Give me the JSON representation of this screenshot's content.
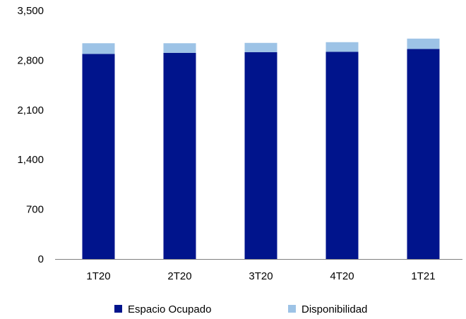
{
  "chart_data": {
    "type": "bar",
    "stacked": true,
    "categories": [
      "1T20",
      "2T20",
      "3T20",
      "4T20",
      "1T21"
    ],
    "series": [
      {
        "name": "Espacio Ocupado",
        "color": "#00148C",
        "values": [
          2890,
          2905,
          2915,
          2920,
          2960
        ]
      },
      {
        "name": "Disponibilidad",
        "color": "#9DC3E6",
        "values": [
          150,
          135,
          130,
          135,
          145
        ]
      }
    ],
    "y_ticks": [
      "0",
      "700",
      "1,400",
      "2,100",
      "2,800",
      "3,500"
    ],
    "ylim": [
      0,
      3500
    ],
    "legend_position": "bottom",
    "grid": false
  }
}
